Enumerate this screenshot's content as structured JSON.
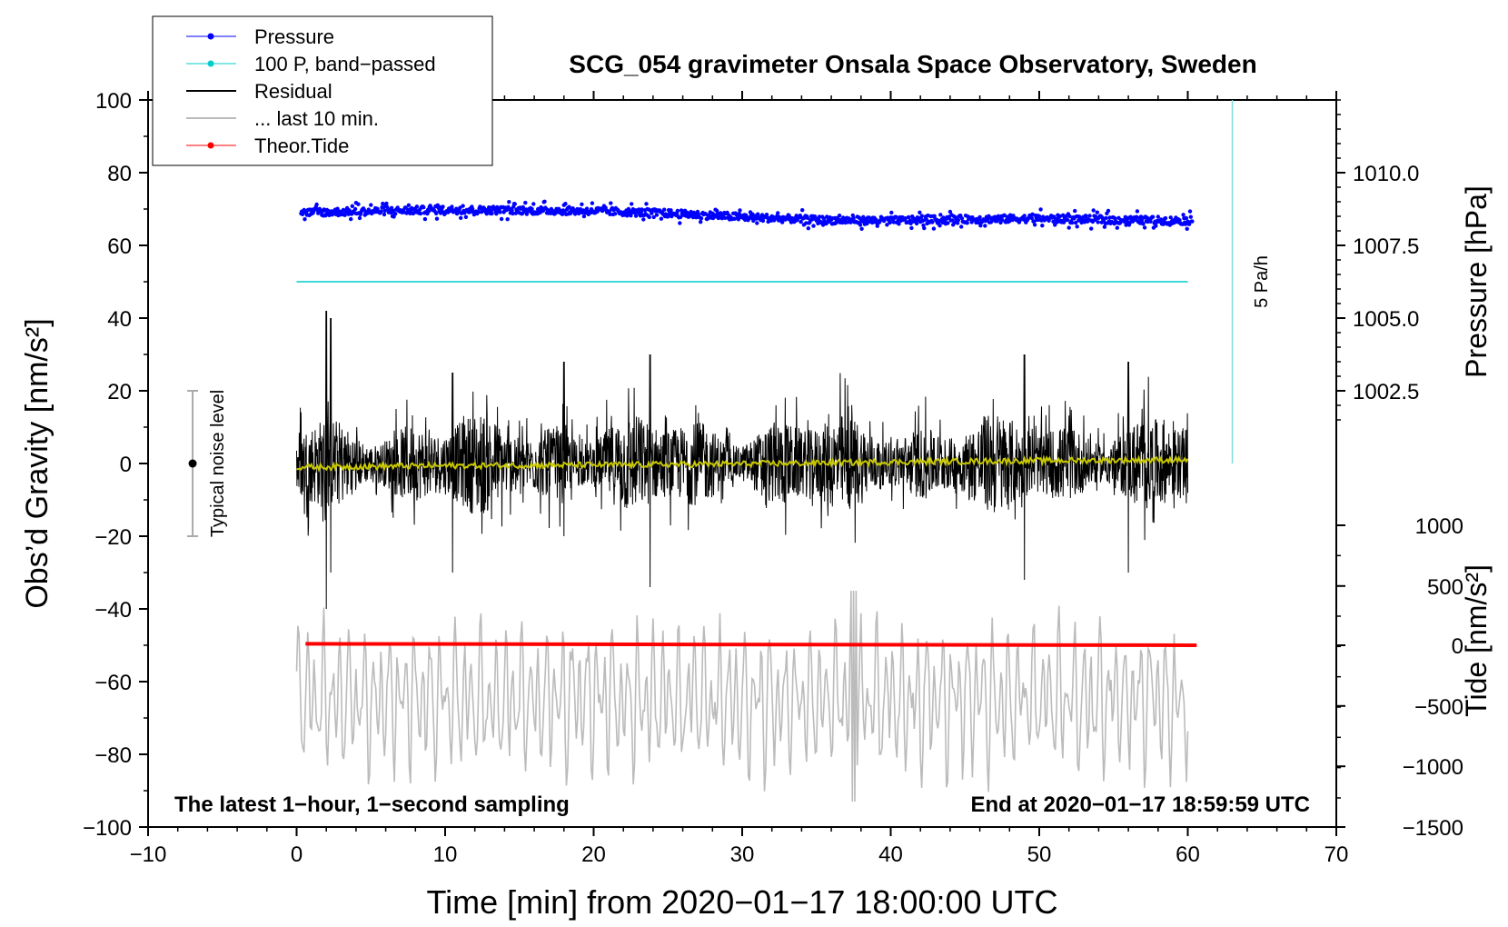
{
  "chart_data": {
    "type": "line",
    "title": "SCG_054 gravimeter Onsala Space Observatory, Sweden",
    "xlabel": "Time [min] from 2020−01−17 18:00:00 UTC",
    "ylabel_left": "Obs’d Gravity [nm/s²]",
    "ylabel_right_pressure": "Pressure [hPa]",
    "ylabel_right_tide": "Tide [nm/s²]",
    "xlim": [
      -10,
      70
    ],
    "ylim": [
      -100,
      100
    ],
    "x_ticks": [
      -10,
      0,
      10,
      20,
      30,
      40,
      50,
      60,
      70
    ],
    "x_tick_labels": [
      "−10",
      "0",
      "10",
      "20",
      "30",
      "40",
      "50",
      "60",
      "70"
    ],
    "y_ticks": [
      -100,
      -80,
      -60,
      -40,
      -20,
      0,
      20,
      40,
      60,
      80,
      100
    ],
    "y_tick_labels": [
      "−100",
      "−80",
      "−60",
      "−40",
      "−20",
      "0",
      "20",
      "40",
      "60",
      "80",
      "100"
    ],
    "pressure_axis": {
      "ticks": [
        1010.0,
        1007.5,
        1005.0,
        1002.5
      ],
      "tick_labels": [
        "1010.0",
        "1007.5",
        "1005.0",
        "1002.5"
      ],
      "gravity_at_ticks": [
        80,
        60,
        40,
        20
      ]
    },
    "tide_axis": {
      "ticks": [
        1000,
        500,
        0,
        -500,
        -1000,
        -1500
      ],
      "tick_labels": [
        "1000",
        "500",
        "0",
        "−500",
        "−1000",
        "−1500"
      ],
      "gravity_at_ticks": [
        -17,
        -33.7,
        -50,
        -66.7,
        -83.3,
        -100
      ]
    },
    "legend": {
      "position": "top-left",
      "entries": [
        {
          "label": "Pressure",
          "color": "#0000ff",
          "marker": true
        },
        {
          "label": "100 P, band−passed",
          "color": "#00cccc",
          "marker": true
        },
        {
          "label": "Residual",
          "color": "#000000",
          "marker": false
        },
        {
          "label": "... last 10 min.",
          "color": "#bbbbbb",
          "marker": false
        },
        {
          "label": "Theor.Tide",
          "color": "#ff0000",
          "marker": true
        }
      ]
    },
    "series": [
      {
        "name": "Pressure",
        "color": "#0000ff",
        "kind": "points",
        "t": [
          0,
          10,
          20,
          25,
          30,
          35,
          40,
          45,
          50,
          55,
          60
        ],
        "values": [
          69,
          69.8,
          69.5,
          68.8,
          67.8,
          67,
          66.8,
          67.2,
          67.4,
          67,
          66.8
        ],
        "scatter": 1.3
      },
      {
        "name": "100 P, band−passed",
        "color": "#00cccc",
        "kind": "line",
        "t": [
          0,
          60
        ],
        "values": [
          50,
          50
        ]
      },
      {
        "name": "Residual",
        "color": "#000000",
        "kind": "noise",
        "t": [
          0,
          60
        ],
        "center": 0,
        "amplitude": 12,
        "peaks": [
          [
            2,
            42,
            -40
          ],
          [
            2.3,
            40,
            -30
          ],
          [
            10.5,
            25,
            -30
          ],
          [
            18,
            28,
            -20
          ],
          [
            23.8,
            30,
            -34
          ],
          [
            49,
            30,
            -32
          ],
          [
            56,
            28,
            -30
          ]
        ]
      },
      {
        "name": "Residual (smoothed)",
        "color": "#c8c800",
        "kind": "line",
        "t": [
          0,
          10,
          20,
          30,
          40,
          50,
          60
        ],
        "values": [
          -1,
          -0.6,
          -0.4,
          -0.1,
          0.4,
          0.8,
          1.0
        ]
      },
      {
        "name": "... last 10 min.",
        "color": "#bbbbbb",
        "kind": "oscillation",
        "t": [
          0,
          60
        ],
        "center": -65,
        "amplitude": 14,
        "extremes": [
          [
            37.5,
            -93,
            -35
          ]
        ]
      },
      {
        "name": "Theor.Tide",
        "color": "#ff0000",
        "kind": "line",
        "t": [
          0,
          60
        ],
        "values": [
          -49.6,
          -50
        ]
      }
    ],
    "noise_bar": {
      "label": "Typical noise level",
      "x": -7,
      "center": 0,
      "low": -20,
      "high": 20
    },
    "band_scale": {
      "label": "5 Pa/h",
      "x": 63,
      "low": 0,
      "high": 100
    },
    "annotations": [
      {
        "text": "The latest 1−hour, 1−second sampling",
        "anchor": "bottom-left"
      },
      {
        "text": "End at 2020−01−17 18:59:59 UTC",
        "anchor": "bottom-right"
      }
    ]
  }
}
